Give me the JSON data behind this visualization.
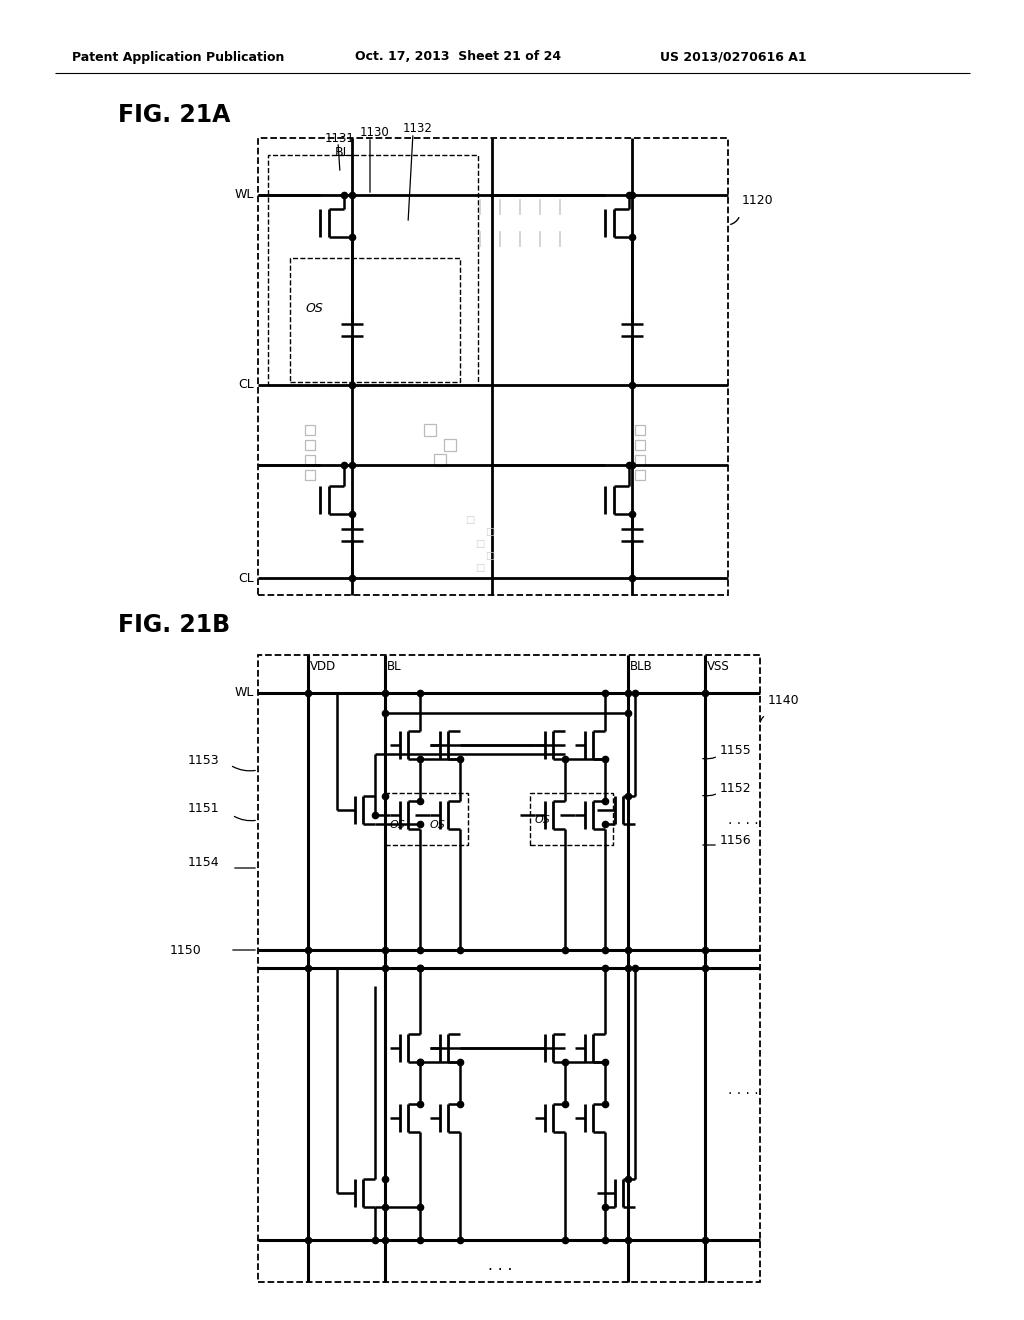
{
  "bg_color": "#ffffff",
  "header_left": "Patent Application Publication",
  "header_mid": "Oct. 17, 2013  Sheet 21 of 24",
  "header_right": "US 2013/0270616 A1",
  "fig_a_label": "FIG. 21A",
  "fig_b_label": "FIG. 21B",
  "label_1120": "1120",
  "label_1130": "1130",
  "label_1131": "1131",
  "label_1132": "1132",
  "label_1140": "1140",
  "label_1150": "1150",
  "label_1151": "1151",
  "label_1152": "1152",
  "label_1153": "1153",
  "label_1154": "1154",
  "label_1155": "1155",
  "label_1156": "1156"
}
